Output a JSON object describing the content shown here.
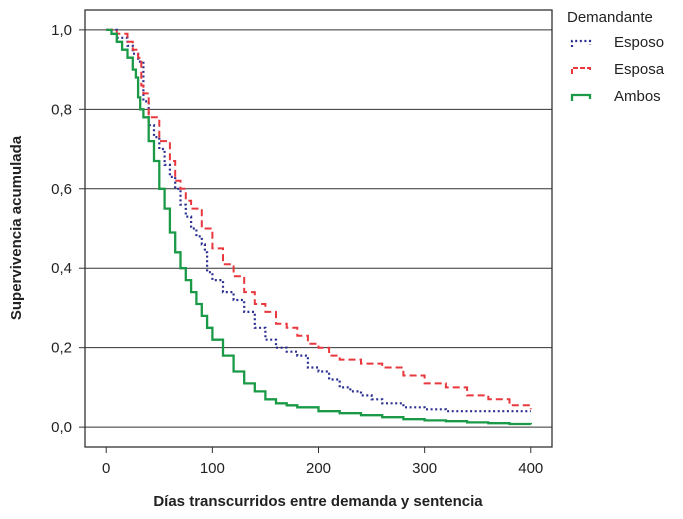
{
  "chart_data": {
    "type": "line",
    "title": "",
    "xlabel": "Días transcurridos entre demanda y sentencia",
    "ylabel": "Supervivencia acumulada",
    "xlim": [
      -20,
      420
    ],
    "ylim": [
      -0.05,
      1.05
    ],
    "xticks": [
      0,
      100,
      200,
      300,
      400
    ],
    "xtick_labels": [
      "0",
      "100",
      "200",
      "300",
      "400"
    ],
    "yticks": [
      0.0,
      0.2,
      0.4,
      0.6,
      0.8,
      1.0
    ],
    "ytick_labels": [
      "0,0",
      "0,2",
      "0,4",
      "0,6",
      "0,8",
      "1,0"
    ],
    "grid": "horizontal",
    "legend": {
      "title": "Demandante",
      "position": "right"
    },
    "series": [
      {
        "name": "Esposo",
        "color": "#2b2f8f",
        "dash": "dotted",
        "x": [
          0,
          10,
          20,
          25,
          30,
          35,
          40,
          45,
          50,
          55,
          60,
          65,
          70,
          75,
          80,
          85,
          90,
          93,
          95,
          100,
          110,
          120,
          130,
          140,
          150,
          160,
          170,
          180,
          190,
          200,
          210,
          220,
          230,
          240,
          250,
          260,
          280,
          300,
          320,
          340,
          360,
          380,
          400
        ],
        "y": [
          1.0,
          0.98,
          0.96,
          0.94,
          0.92,
          0.82,
          0.76,
          0.73,
          0.7,
          0.66,
          0.63,
          0.6,
          0.56,
          0.53,
          0.5,
          0.48,
          0.46,
          0.44,
          0.39,
          0.37,
          0.34,
          0.32,
          0.29,
          0.25,
          0.22,
          0.2,
          0.19,
          0.18,
          0.15,
          0.14,
          0.12,
          0.1,
          0.09,
          0.08,
          0.07,
          0.06,
          0.05,
          0.045,
          0.04,
          0.04,
          0.04,
          0.04,
          0.04
        ]
      },
      {
        "name": "Esposa",
        "color": "#e8373d",
        "dash": "dashed",
        "x": [
          0,
          10,
          20,
          25,
          30,
          33,
          35,
          40,
          50,
          60,
          65,
          70,
          75,
          80,
          90,
          100,
          110,
          120,
          130,
          140,
          150,
          160,
          170,
          180,
          190,
          200,
          210,
          220,
          240,
          260,
          280,
          300,
          320,
          340,
          360,
          380,
          400
        ],
        "y": [
          1.0,
          0.99,
          0.97,
          0.95,
          0.93,
          0.86,
          0.84,
          0.78,
          0.72,
          0.67,
          0.62,
          0.6,
          0.57,
          0.55,
          0.5,
          0.45,
          0.41,
          0.38,
          0.34,
          0.31,
          0.29,
          0.26,
          0.25,
          0.23,
          0.21,
          0.2,
          0.18,
          0.17,
          0.16,
          0.15,
          0.13,
          0.11,
          0.1,
          0.08,
          0.07,
          0.055,
          0.045
        ]
      },
      {
        "name": "Ambos",
        "color": "#1a9a46",
        "dash": "solid",
        "x": [
          0,
          5,
          10,
          15,
          20,
          25,
          28,
          30,
          32,
          35,
          40,
          45,
          50,
          55,
          60,
          65,
          70,
          75,
          80,
          85,
          90,
          95,
          100,
          110,
          120,
          130,
          140,
          150,
          160,
          170,
          180,
          200,
          220,
          240,
          260,
          280,
          300,
          320,
          340,
          360,
          380,
          400
        ],
        "y": [
          1.0,
          0.99,
          0.97,
          0.95,
          0.93,
          0.9,
          0.88,
          0.83,
          0.8,
          0.78,
          0.72,
          0.67,
          0.6,
          0.55,
          0.49,
          0.44,
          0.4,
          0.37,
          0.34,
          0.31,
          0.28,
          0.25,
          0.22,
          0.18,
          0.14,
          0.11,
          0.09,
          0.07,
          0.06,
          0.055,
          0.05,
          0.04,
          0.035,
          0.03,
          0.025,
          0.02,
          0.017,
          0.015,
          0.012,
          0.01,
          0.008,
          0.007
        ]
      }
    ]
  }
}
